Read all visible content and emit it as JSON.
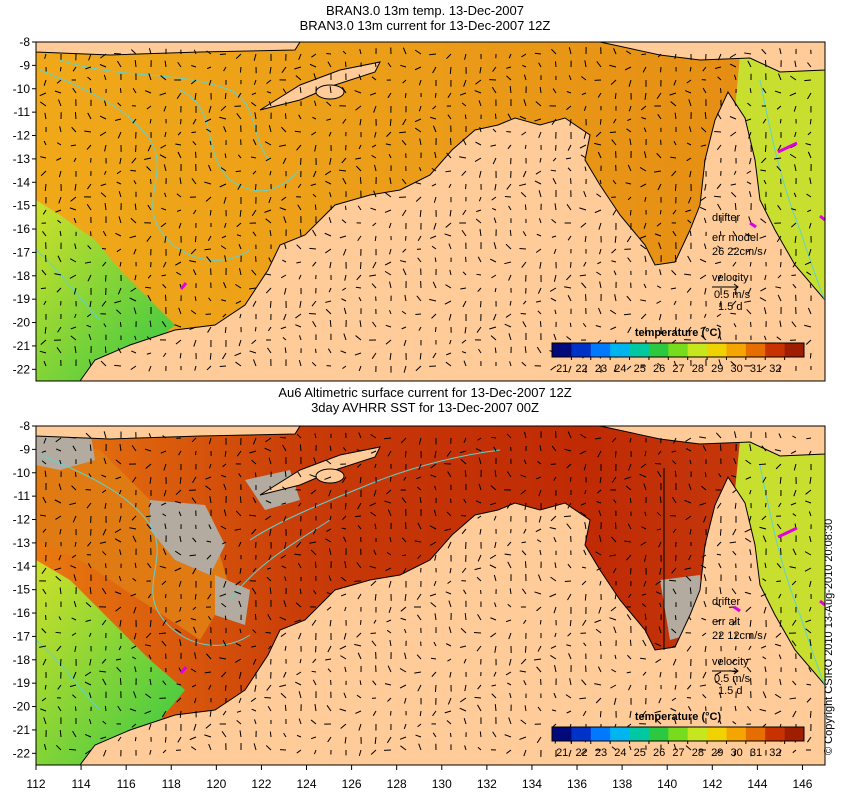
{
  "panels": [
    {
      "title_line1": "BRAN3.0 13m temp. 13-Dec-2007",
      "title_line2": "BRAN3.0 13m current for 13-Dec-2007 12Z",
      "legend": {
        "drifter_label": "drifter",
        "err_label": "err model",
        "err_values": "26 22cm/s",
        "velocity_label": "velocity",
        "velocity_value": "0.5 m/s",
        "velocity_time": "1.5 d"
      },
      "colorbar": {
        "label": "temperature (°C)"
      }
    },
    {
      "title_line1": "Au6 Altimetric surface current for 13-Dec-2007 12Z",
      "title_line2": "3day AVHRR SST for 13-Dec-2007 00Z",
      "legend": {
        "drifter_label": "drifter",
        "err_label": "err alt",
        "err_values": "22 12cm/s",
        "velocity_label": "velocity",
        "velocity_value": "0.5 m/s",
        "velocity_time": "1.5 d"
      },
      "colorbar": {
        "label": "temperature (°C)"
      }
    }
  ],
  "axes": {
    "lat_ticks": [
      -8,
      -9,
      -10,
      -11,
      -12,
      -13,
      -14,
      -15,
      -16,
      -17,
      -18,
      -19,
      -20,
      -21,
      -22
    ],
    "lon_ticks": [
      112,
      114,
      116,
      118,
      120,
      122,
      124,
      126,
      128,
      130,
      132,
      134,
      136,
      138,
      140,
      142,
      144,
      146
    ],
    "lat_range": [
      -22.5,
      -8
    ],
    "lon_range": [
      112,
      147
    ]
  },
  "colorbar_ticks": [
    21,
    22,
    23,
    24,
    25,
    26,
    27,
    28,
    29,
    30,
    31,
    32
  ],
  "colorbar_colors": [
    "#000a7a",
    "#0032c8",
    "#0078ff",
    "#00b4f0",
    "#00c8a0",
    "#2bc840",
    "#78dc1e",
    "#c8e61e",
    "#f0d200",
    "#f5a500",
    "#e66e00",
    "#c83200",
    "#a01e00"
  ],
  "colors": {
    "land": "#ffcc99",
    "ocean_warm": "#e89a1a",
    "ocean_hot": "#c62e06",
    "cool": "#3ccd4a",
    "contour": "#5fd3cf",
    "drifter": "#e000e0",
    "cloud": "#b4aba0"
  },
  "copyright": "© Copyright CSIRO 2010  13-Aug-2010 20:08:30"
}
